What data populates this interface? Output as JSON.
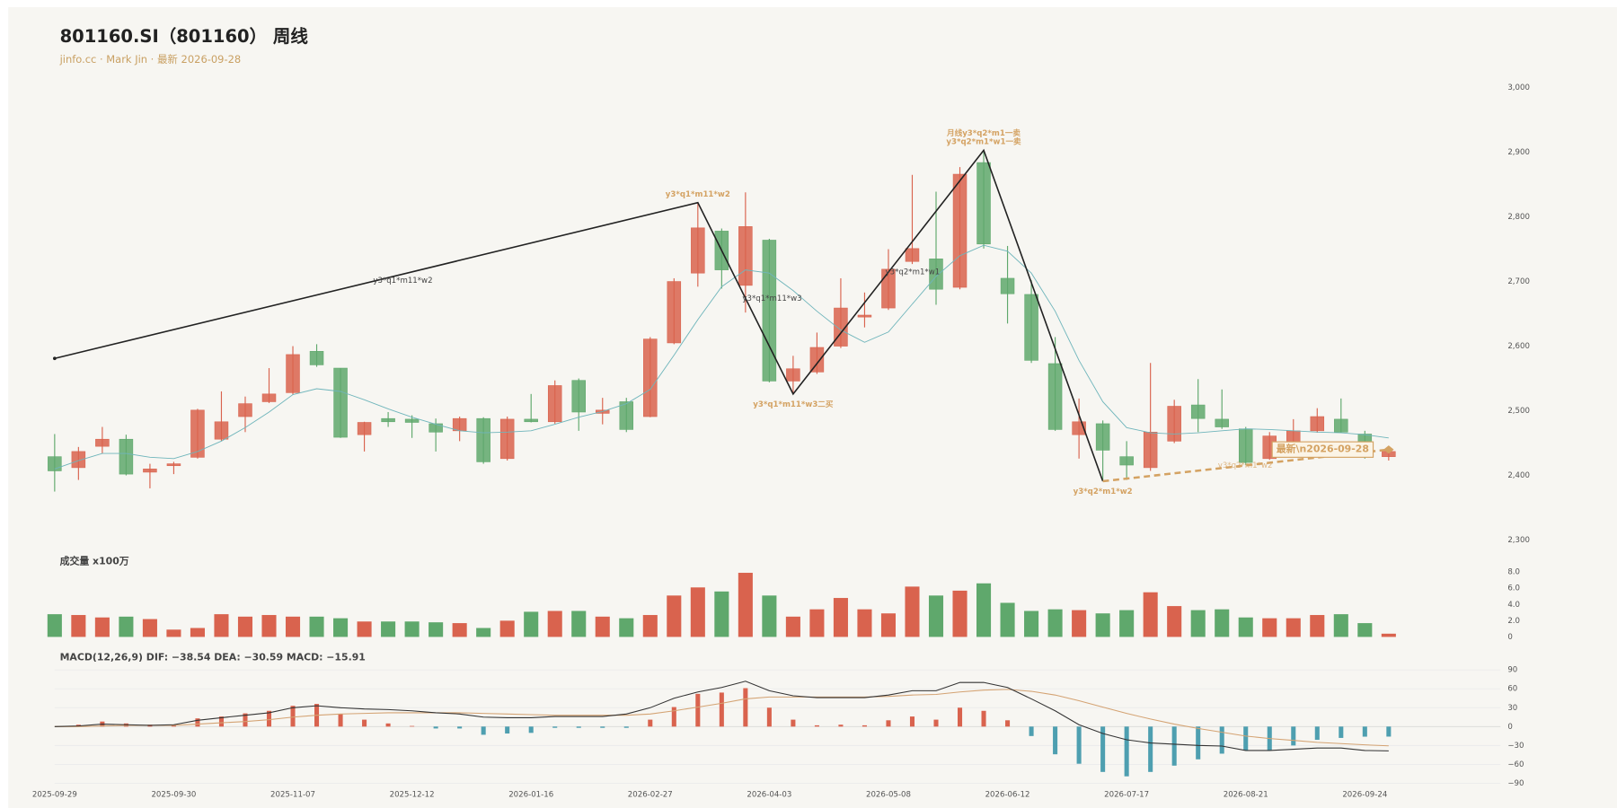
{
  "chart_data": [
    {
      "type": "candlestick",
      "title": "801160.SI（801160） 周线",
      "subtitle": "jinfo.cc · Mark Jin · 最新 2026-09-28",
      "categories": [
        "2025-09-29",
        null,
        null,
        null,
        null,
        "2025-09-30",
        null,
        null,
        null,
        null,
        "2025-11-07",
        null,
        null,
        null,
        null,
        "2025-12-12",
        null,
        null,
        null,
        null,
        "2026-01-16",
        null,
        null,
        null,
        null,
        "2026-02-27",
        null,
        null,
        null,
        null,
        "2026-04-03",
        null,
        null,
        null,
        null,
        "2026-05-08",
        null,
        null,
        null,
        null,
        "2026-06-12",
        null,
        null,
        null,
        null,
        "2026-07-17",
        null,
        null,
        null,
        null,
        "2026-08-21",
        null,
        null,
        null,
        null,
        "2026-09-24",
        null
      ],
      "open": [
        2429,
        2412,
        2445,
        2456,
        2405,
        2415,
        2428,
        2456,
        2491,
        2514,
        2528,
        2592,
        2566,
        2463,
        2488,
        2487,
        2480,
        2469,
        2488,
        2426,
        2487,
        2483,
        2547,
        2496,
        2514,
        2491,
        2605,
        2713,
        2778,
        2694,
        2764,
        2546,
        2560,
        2600,
        2645,
        2659,
        2731,
        2735,
        2691,
        2884,
        2705,
        2680,
        2573,
        2463,
        2480,
        2429,
        2412,
        2453,
        2509,
        2487,
        2472,
        2426,
        2452,
        2469,
        2487,
        2464,
        2429
      ],
      "high": [
        2464,
        2444,
        2475,
        2463,
        2418,
        2421,
        2503,
        2530,
        2522,
        2566,
        2600,
        2603,
        2566,
        2483,
        2498,
        2493,
        2488,
        2491,
        2490,
        2491,
        2526,
        2547,
        2550,
        2520,
        2520,
        2614,
        2705,
        2822,
        2782,
        2838,
        2766,
        2585,
        2621,
        2705,
        2683,
        2750,
        2865,
        2839,
        2877,
        2903,
        2755,
        2702,
        2614,
        2519,
        2485,
        2453,
        2574,
        2517,
        2549,
        2533,
        2475,
        2467,
        2487,
        2504,
        2519,
        2469,
        2440
      ],
      "low": [
        2375,
        2393,
        2434,
        2400,
        2380,
        2402,
        2426,
        2453,
        2467,
        2512,
        2525,
        2568,
        2458,
        2437,
        2475,
        2458,
        2437,
        2453,
        2418,
        2423,
        2482,
        2480,
        2469,
        2479,
        2467,
        2490,
        2603,
        2692,
        2689,
        2652,
        2544,
        2526,
        2557,
        2597,
        2629,
        2656,
        2727,
        2664,
        2688,
        2751,
        2635,
        2574,
        2469,
        2426,
        2391,
        2393,
        2407,
        2450,
        2467,
        2472,
        2416,
        2424,
        2447,
        2466,
        2466,
        2426,
        2423
      ],
      "close": [
        2407,
        2437,
        2456,
        2402,
        2410,
        2418,
        2501,
        2483,
        2511,
        2526,
        2587,
        2571,
        2459,
        2482,
        2483,
        2482,
        2467,
        2488,
        2421,
        2487,
        2483,
        2539,
        2498,
        2501,
        2471,
        2611,
        2700,
        2783,
        2718,
        2785,
        2546,
        2565,
        2598,
        2659,
        2648,
        2719,
        2751,
        2688,
        2866,
        2758,
        2681,
        2578,
        2471,
        2483,
        2439,
        2416,
        2467,
        2507,
        2488,
        2475,
        2420,
        2461,
        2469,
        2491,
        2467,
        2444,
        2437
      ],
      "up_color": "#d9634e",
      "down_color": "#5fa86c",
      "ma": {
        "color": "#6fb5bb",
        "values": [
          2410,
          2423,
          2434,
          2434,
          2428,
          2426,
          2437,
          2453,
          2474,
          2498,
          2525,
          2534,
          2530,
          2517,
          2503,
          2490,
          2479,
          2469,
          2466,
          2467,
          2469,
          2479,
          2490,
          2499,
          2511,
          2533,
          2586,
          2641,
          2692,
          2718,
          2713,
          2686,
          2654,
          2625,
          2606,
          2622,
          2665,
          2708,
          2740,
          2756,
          2747,
          2713,
          2654,
          2578,
          2514,
          2474,
          2466,
          2464,
          2466,
          2469,
          2472,
          2471,
          2469,
          2467,
          2466,
          2463,
          2458
        ]
      },
      "zigzag": {
        "color": "#222222",
        "x": [
          0,
          27,
          31,
          39,
          44
        ],
        "values": [
          2581,
          2822,
          2526,
          2903,
          2391
        ],
        "point_labels": [
          null,
          [
            "y3*q1*m11*w2"
          ],
          [
            "y3*q1*m11*w3二买"
          ],
          [
            "月线y3*q2*m1一卖",
            "y3*q2*m1*w1一卖"
          ],
          [
            "y3*q2*m1*w2"
          ]
        ],
        "segment_labels": [
          null,
          "y3*q1*m11*w2",
          "y3*q1*m11*w3",
          "y3*q2*m1*w1"
        ]
      },
      "latest": {
        "color": "#d4a262",
        "x": 56,
        "value": 2440,
        "label": "最新\\n2026-09-28",
        "segment_label": "y3*q2*m1*w2"
      },
      "ylim": [
        2300,
        3000
      ],
      "yticks": [
        {
          "value": 2300,
          "label": "2,300"
        },
        {
          "value": 2400,
          "label": "2,400"
        },
        {
          "value": 2500,
          "label": "2,500"
        },
        {
          "value": 2600,
          "label": "2,600"
        },
        {
          "value": 2700,
          "label": "2,700"
        },
        {
          "value": 2800,
          "label": "2,800"
        },
        {
          "value": 2900,
          "label": "2,900"
        },
        {
          "value": 3000,
          "label": "3,000"
        }
      ]
    },
    {
      "type": "volume",
      "title": "成交量 x100万",
      "values": [
        2.8,
        2.7,
        2.4,
        2.5,
        2.2,
        0.9,
        1.1,
        2.8,
        2.5,
        2.7,
        2.5,
        2.5,
        2.3,
        1.9,
        1.9,
        1.9,
        1.8,
        1.7,
        1.1,
        2.0,
        3.1,
        3.2,
        3.2,
        2.5,
        2.3,
        2.7,
        5.1,
        6.1,
        5.6,
        7.9,
        5.1,
        2.5,
        3.4,
        4.8,
        3.4,
        2.9,
        6.2,
        5.1,
        5.7,
        6.6,
        4.2,
        3.2,
        3.4,
        3.3,
        2.9,
        3.3,
        5.5,
        3.8,
        3.3,
        3.4,
        2.4,
        2.3,
        2.3,
        2.7,
        2.8,
        1.7,
        0.4
      ],
      "ylim": [
        0,
        8
      ],
      "yticks": [
        0,
        {
          "value": 2,
          "label": "2.0"
        },
        {
          "value": 4,
          "label": "4.0"
        },
        {
          "value": 6,
          "label": "6.0"
        },
        {
          "value": 8,
          "label": "8.0"
        }
      ]
    },
    {
      "type": "macd",
      "title": "MACD(12,26,9) DIF: −38.54 DEA: −30.59 MACD: −15.91",
      "hist": [
        0,
        3,
        8,
        5,
        3,
        3,
        13,
        16,
        21,
        25,
        33,
        36,
        20,
        11,
        5,
        1,
        -3,
        -3,
        -13,
        -11,
        -10,
        -2,
        -2,
        -2,
        -2,
        11,
        31,
        52,
        54,
        61,
        30,
        11,
        2,
        3,
        2,
        10,
        16,
        11,
        30,
        25,
        10,
        -15,
        -44,
        -59,
        -72,
        -79,
        -72,
        -62,
        -52,
        -43,
        -38,
        -38,
        -30,
        -21,
        -18,
        -16,
        -15.91
      ],
      "pos_color": "#d9634e",
      "neg_color": "#4e9fb0",
      "dif": {
        "color": "#333333",
        "values": [
          0,
          1,
          4,
          3,
          2,
          3,
          10,
          14,
          18,
          22,
          30,
          33,
          30,
          28,
          27,
          25,
          22,
          20,
          15,
          14,
          14,
          16,
          16,
          16,
          20,
          30,
          45,
          55,
          62,
          72,
          57,
          49,
          46,
          46,
          46,
          50,
          57,
          57,
          70,
          70,
          62,
          44,
          25,
          3,
          -11,
          -21,
          -26,
          -28,
          -30,
          -31,
          -38,
          -38,
          -36,
          -34,
          -34,
          -38,
          -38.54
        ]
      },
      "dea": {
        "color": "#d4a373",
        "values": [
          0,
          0,
          1,
          2,
          2,
          2,
          4,
          6,
          8,
          11,
          15,
          18,
          20,
          21,
          22,
          22,
          22,
          22,
          21,
          20,
          19,
          18,
          18,
          18,
          18,
          20,
          25,
          31,
          37,
          44,
          47,
          47,
          47,
          47,
          47,
          48,
          50,
          51,
          55,
          58,
          59,
          56,
          50,
          41,
          31,
          21,
          12,
          4,
          -3,
          -9,
          -15,
          -19,
          -22,
          -25,
          -27,
          -29,
          -30.59
        ]
      },
      "ylim": [
        -90,
        90
      ],
      "yticks": [
        90,
        60,
        30,
        0,
        {
          "value": -30,
          "label": "−30"
        },
        {
          "value": -60,
          "label": "−60"
        },
        {
          "value": -90,
          "label": "−90"
        }
      ],
      "grid": true
    }
  ]
}
